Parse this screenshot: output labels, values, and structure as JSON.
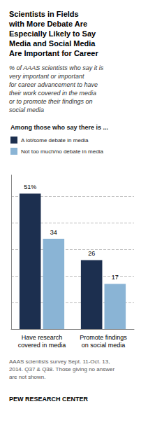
{
  "chart_data": {
    "type": "bar",
    "title": "Scientists in Fields\nwith More Debate Are\nEspecially Likely to Say\nMedia and Social Media\nAre Important for Career",
    "subtitle": "% of AAAS scientists who say it is\nvery important or important\nfor career advancement to have\ntheir work covered in the media\nor to promote their findings on\nsocial media",
    "legend_title": "Among those who say there is ...",
    "categories": [
      "Have research\ncovered in media",
      "Promote findings\non social media"
    ],
    "series": [
      {
        "name": "A lot/some debate in media",
        "color": "#1c2f4f",
        "values": [
          51,
          26
        ],
        "value_labels": [
          "51%",
          "26"
        ]
      },
      {
        "name": "Not too much/no debate in media",
        "color": "#8ab4d5",
        "values": [
          34,
          17
        ],
        "value_labels": [
          "34",
          "17"
        ]
      }
    ],
    "ylim": [
      0,
      58
    ],
    "yticks": [
      0,
      10,
      20,
      30,
      40,
      50
    ],
    "grid": true,
    "legend": "upper left",
    "tick_labels": "x",
    "data_labels": true,
    "footnote": "AAAS scientists survey Sept. 11-Oct. 13,\n2014. Q37 & Q38. Those giving no answer\nare not shown.",
    "source": "PEW RESEARCH CENTER"
  }
}
